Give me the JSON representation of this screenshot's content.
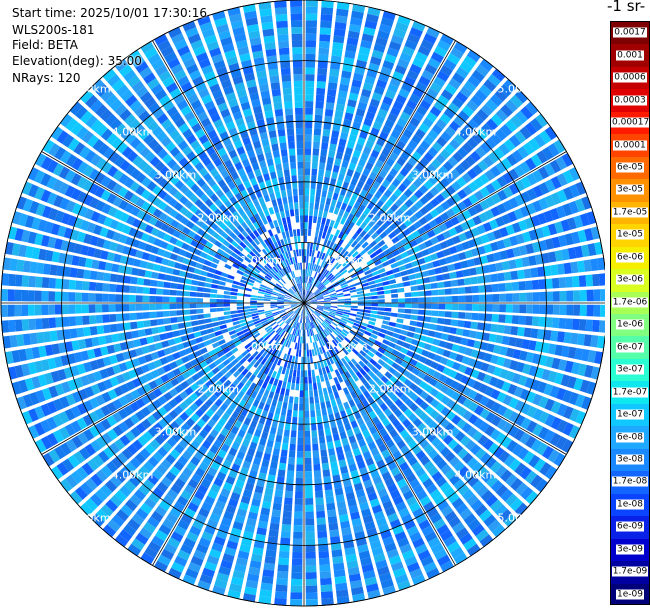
{
  "info": {
    "start_time": "Start time: 2025/10/01 17:30:16",
    "instrument": "WLS200s-181",
    "field": "Field: BETA",
    "elevation": "Elevation(deg): 35.00",
    "nrays": "NRays: 120"
  },
  "colorbar": {
    "title": "-1 sr-",
    "labels": [
      "0.0017",
      "0.001",
      "0.0006",
      "0.0003",
      "0.00017",
      "0.0001",
      "6e-05",
      "3e-05",
      "1.7e-05",
      "1e-05",
      "6e-06",
      "3e-06",
      "1.7e-06",
      "1e-06",
      "6e-07",
      "3e-07",
      "1.7e-07",
      "1e-07",
      "6e-08",
      "3e-08",
      "1.7e-08",
      "1e-08",
      "6e-09",
      "3e-09",
      "1.7e-09",
      "1e-09"
    ],
    "colors": [
      "#7f0000",
      "#a00000",
      "#c40000",
      "#e00000",
      "#ff1a00",
      "#ff4400",
      "#ff6a00",
      "#ff9200",
      "#ffb400",
      "#ffd400",
      "#f5ee00",
      "#d8ff20",
      "#a8ff55",
      "#80ff80",
      "#55ffaa",
      "#2affd4",
      "#10e8f0",
      "#10c8ff",
      "#1ea8ff",
      "#1a88ff",
      "#1266ff",
      "#0a44ff",
      "#0a22e8",
      "#0000cc",
      "#0000a0",
      "#00007a"
    ]
  },
  "chart_data": {
    "type": "ppi",
    "field": "BETA",
    "elevation_deg": 35.0,
    "n_rays": 120,
    "range_rings_km": [
      1.0,
      2.0,
      3.0,
      4.0,
      5.0
    ],
    "ring_labels": [
      "1.00km",
      "2.00km",
      "3.00km",
      "4.00km",
      "5.00km"
    ],
    "max_range_km": 5.0,
    "grid": true,
    "typical_value": "3e-08 to 1e-07"
  }
}
